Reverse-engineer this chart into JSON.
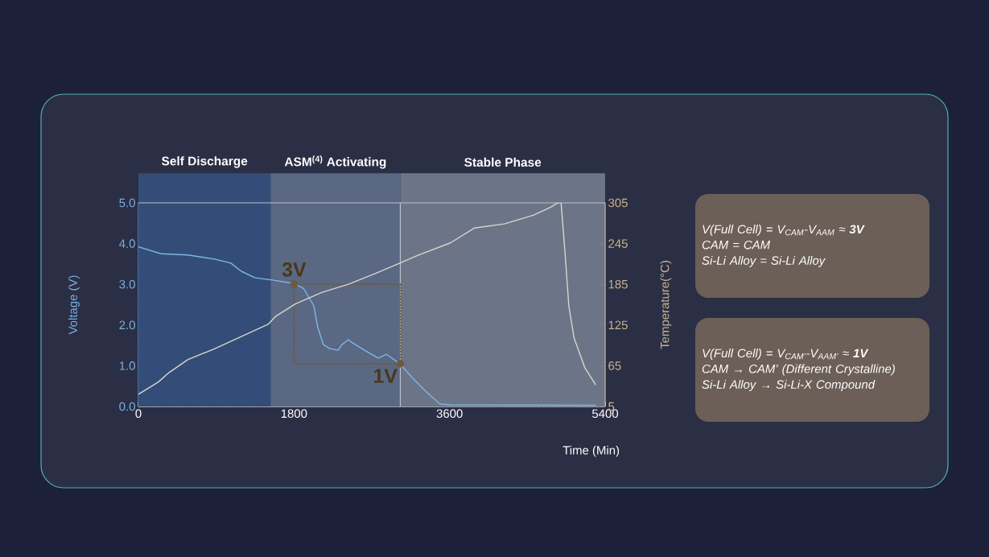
{
  "chart_data": {
    "type": "line",
    "xlabel": "Time (Min)",
    "ylabel": "Voltage (V)",
    "y2label": "Temperature(°C)",
    "xlim": [
      0,
      5400
    ],
    "xticks": [
      0,
      1800,
      3600,
      5400
    ],
    "ylim": [
      0,
      5
    ],
    "yticks": [
      {
        "value": 0,
        "label": "0.0"
      },
      {
        "value": 1,
        "label": "1.0"
      },
      {
        "value": 2,
        "label": "2.0"
      },
      {
        "value": 3,
        "label": "3.0"
      },
      {
        "value": 4,
        "label": "4.0"
      },
      {
        "value": 5,
        "label": "5.0"
      }
    ],
    "y2lim": [
      5,
      305
    ],
    "y2ticks": [
      5,
      65,
      125,
      185,
      245,
      305
    ],
    "grid": true,
    "bands": [
      {
        "axis": "x",
        "from": 0,
        "to": 1530,
        "label": "Self Discharge",
        "color": "#344d78"
      },
      {
        "axis": "x",
        "from": 1530,
        "to": 3030,
        "label": "ASM$^{(4)}$ Activating",
        "color": "#5a6884"
      },
      {
        "axis": "x",
        "from": 3030,
        "to": 5400,
        "label": "Stable Phase",
        "color": "#6c7488"
      }
    ],
    "ref_lines": [
      {
        "axis": "x",
        "value": 3030,
        "color": "#bbc0ce"
      }
    ],
    "series": [
      {
        "color": "#7db7e6",
        "x": [
          0,
          261,
          570,
          880,
          1070,
          1190,
          1350,
          1565,
          1800,
          1910,
          2030,
          2075,
          2140,
          2215,
          2310,
          2355,
          2430,
          2465,
          2615,
          2775,
          2870,
          3025,
          3175,
          3330,
          3490,
          3610,
          5290
        ],
        "values": [
          3.92,
          3.75,
          3.72,
          3.62,
          3.52,
          3.32,
          3.16,
          3.1,
          3.02,
          2.9,
          2.47,
          1.94,
          1.52,
          1.42,
          1.38,
          1.52,
          1.64,
          1.58,
          1.38,
          1.19,
          1.28,
          1.05,
          0.69,
          0.36,
          0.06,
          0.04,
          0.03
        ]
      },
      {
        "axis": "y2",
        "color": "#d9d5c9",
        "x": [
          0,
          230,
          355,
          570,
          880,
          1190,
          1500,
          1590,
          1815,
          2120,
          2430,
          2745,
          3240,
          3610,
          3890,
          4235,
          4575,
          4760,
          4855,
          4890,
          4935,
          4980,
          5040,
          5165,
          5290
        ],
        "values": [
          23,
          41,
          55,
          74,
          90,
          108,
          126,
          138,
          156,
          173,
          185,
          201,
          228,
          246,
          268,
          274,
          287,
          298,
          305,
          305,
          233,
          153,
          106,
          62,
          37
        ]
      },
      {
        "type": "scatter",
        "marker": "circle",
        "color": "#6e5a3c",
        "x": [
          1800,
          3030
        ],
        "values": [
          3.0,
          1.05
        ]
      }
    ],
    "annotations": [
      {
        "text": "3V",
        "x": 1800,
        "y": 3.0
      },
      {
        "text": "1V",
        "x": 3030,
        "y": 1.05
      },
      "V(Full Cell) = V$_{CAM}$-V$_{AAM}$ ≈ **3V**",
      "CAM = CAM",
      "Si-Li Alloy = Si-Li Alloy",
      "V(Full Cell) = V$_{CAM’}$-V$_{AAM’}$ ≈ **1V**",
      "CAM → CAM’ (Different Crystalline)",
      "Si-Li Alloy →  Si-Li-X Compound"
    ]
  }
}
